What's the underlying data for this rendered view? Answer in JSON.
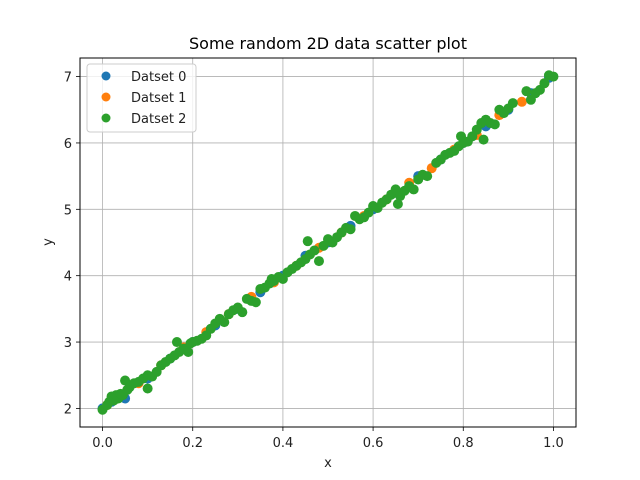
{
  "chart_data": {
    "type": "scatter",
    "title": "Some random 2D data scatter plot",
    "xlabel": "x",
    "ylabel": "y",
    "xlim": [
      -0.05,
      1.05
    ],
    "ylim": [
      1.72,
      7.28
    ],
    "xticks": [
      0.0,
      0.2,
      0.4,
      0.6,
      0.8,
      1.0
    ],
    "xtick_labels": [
      "0.0",
      "0.2",
      "0.4",
      "0.6",
      "0.8",
      "1.0"
    ],
    "yticks": [
      2,
      3,
      4,
      5,
      6,
      7
    ],
    "ytick_labels": [
      "2",
      "3",
      "4",
      "5",
      "6",
      "7"
    ],
    "grid": true,
    "legend_position": "top-left",
    "series": [
      {
        "name": "Datset 0",
        "color": "#1f77b4",
        "points": [
          [
            0.0,
            2.0
          ],
          [
            0.02,
            2.1
          ],
          [
            0.05,
            2.15
          ],
          [
            0.1,
            2.45
          ],
          [
            0.15,
            2.75
          ],
          [
            0.2,
            3.0
          ],
          [
            0.25,
            3.25
          ],
          [
            0.3,
            3.5
          ],
          [
            0.35,
            3.75
          ],
          [
            0.4,
            4.0
          ],
          [
            0.45,
            4.3
          ],
          [
            0.5,
            4.5
          ],
          [
            0.55,
            4.75
          ],
          [
            0.6,
            5.0
          ],
          [
            0.65,
            5.25
          ],
          [
            0.7,
            5.5
          ],
          [
            0.75,
            5.75
          ],
          [
            0.8,
            6.0
          ],
          [
            0.85,
            6.25
          ],
          [
            0.9,
            6.5
          ],
          [
            0.95,
            6.75
          ],
          [
            0.99,
            6.98
          ]
        ]
      },
      {
        "name": "Datset 1",
        "color": "#ff7f0e",
        "points": [
          [
            0.01,
            2.05
          ],
          [
            0.04,
            2.2
          ],
          [
            0.08,
            2.38
          ],
          [
            0.13,
            2.65
          ],
          [
            0.18,
            2.92
          ],
          [
            0.23,
            3.15
          ],
          [
            0.28,
            3.42
          ],
          [
            0.33,
            3.68
          ],
          [
            0.38,
            3.9
          ],
          [
            0.43,
            4.15
          ],
          [
            0.48,
            4.42
          ],
          [
            0.53,
            4.65
          ],
          [
            0.58,
            4.9
          ],
          [
            0.63,
            5.15
          ],
          [
            0.68,
            5.4
          ],
          [
            0.73,
            5.62
          ],
          [
            0.78,
            5.9
          ],
          [
            0.83,
            6.12
          ],
          [
            0.88,
            6.42
          ],
          [
            0.93,
            6.62
          ],
          [
            0.98,
            6.9
          ]
        ]
      },
      {
        "name": "Datset 2",
        "color": "#2ca02c",
        "points": [
          [
            0.0,
            1.98
          ],
          [
            0.01,
            2.05
          ],
          [
            0.015,
            2.1
          ],
          [
            0.02,
            2.18
          ],
          [
            0.025,
            2.12
          ],
          [
            0.03,
            2.2
          ],
          [
            0.035,
            2.15
          ],
          [
            0.04,
            2.22
          ],
          [
            0.045,
            2.2
          ],
          [
            0.05,
            2.42
          ],
          [
            0.055,
            2.28
          ],
          [
            0.06,
            2.32
          ],
          [
            0.07,
            2.38
          ],
          [
            0.08,
            2.4
          ],
          [
            0.09,
            2.45
          ],
          [
            0.1,
            2.5
          ],
          [
            0.1,
            2.3
          ],
          [
            0.11,
            2.48
          ],
          [
            0.12,
            2.55
          ],
          [
            0.13,
            2.65
          ],
          [
            0.14,
            2.7
          ],
          [
            0.15,
            2.75
          ],
          [
            0.16,
            2.8
          ],
          [
            0.165,
            3.0
          ],
          [
            0.17,
            2.85
          ],
          [
            0.18,
            2.9
          ],
          [
            0.19,
            2.85
          ],
          [
            0.195,
            2.98
          ],
          [
            0.2,
            3.0
          ],
          [
            0.21,
            3.02
          ],
          [
            0.22,
            3.05
          ],
          [
            0.23,
            3.1
          ],
          [
            0.24,
            3.2
          ],
          [
            0.25,
            3.28
          ],
          [
            0.26,
            3.35
          ],
          [
            0.27,
            3.3
          ],
          [
            0.28,
            3.42
          ],
          [
            0.29,
            3.48
          ],
          [
            0.3,
            3.52
          ],
          [
            0.31,
            3.45
          ],
          [
            0.32,
            3.65
          ],
          [
            0.33,
            3.62
          ],
          [
            0.34,
            3.6
          ],
          [
            0.35,
            3.8
          ],
          [
            0.36,
            3.82
          ],
          [
            0.37,
            3.88
          ],
          [
            0.375,
            3.95
          ],
          [
            0.38,
            3.92
          ],
          [
            0.39,
            3.98
          ],
          [
            0.4,
            3.95
          ],
          [
            0.41,
            4.05
          ],
          [
            0.42,
            4.1
          ],
          [
            0.43,
            4.15
          ],
          [
            0.44,
            4.2
          ],
          [
            0.45,
            4.25
          ],
          [
            0.455,
            4.52
          ],
          [
            0.46,
            4.32
          ],
          [
            0.47,
            4.38
          ],
          [
            0.48,
            4.22
          ],
          [
            0.49,
            4.45
          ],
          [
            0.5,
            4.55
          ],
          [
            0.51,
            4.5
          ],
          [
            0.52,
            4.58
          ],
          [
            0.53,
            4.65
          ],
          [
            0.54,
            4.72
          ],
          [
            0.55,
            4.7
          ],
          [
            0.56,
            4.9
          ],
          [
            0.57,
            4.85
          ],
          [
            0.58,
            4.88
          ],
          [
            0.59,
            4.95
          ],
          [
            0.6,
            5.05
          ],
          [
            0.61,
            5.02
          ],
          [
            0.62,
            5.1
          ],
          [
            0.63,
            5.15
          ],
          [
            0.64,
            5.22
          ],
          [
            0.65,
            5.3
          ],
          [
            0.655,
            5.08
          ],
          [
            0.66,
            5.2
          ],
          [
            0.67,
            5.28
          ],
          [
            0.68,
            5.35
          ],
          [
            0.69,
            5.3
          ],
          [
            0.7,
            5.45
          ],
          [
            0.71,
            5.52
          ],
          [
            0.72,
            5.5
          ],
          [
            0.74,
            5.7
          ],
          [
            0.75,
            5.75
          ],
          [
            0.76,
            5.82
          ],
          [
            0.77,
            5.85
          ],
          [
            0.78,
            5.88
          ],
          [
            0.79,
            5.95
          ],
          [
            0.795,
            6.1
          ],
          [
            0.8,
            6.0
          ],
          [
            0.81,
            6.02
          ],
          [
            0.82,
            6.1
          ],
          [
            0.83,
            6.2
          ],
          [
            0.84,
            6.3
          ],
          [
            0.845,
            6.05
          ],
          [
            0.85,
            6.35
          ],
          [
            0.86,
            6.3
          ],
          [
            0.87,
            6.28
          ],
          [
            0.88,
            6.5
          ],
          [
            0.89,
            6.45
          ],
          [
            0.9,
            6.52
          ],
          [
            0.91,
            6.6
          ],
          [
            0.94,
            6.78
          ],
          [
            0.95,
            6.65
          ],
          [
            0.96,
            6.75
          ],
          [
            0.97,
            6.8
          ],
          [
            0.98,
            6.9
          ],
          [
            0.99,
            7.02
          ],
          [
            1.0,
            7.0
          ]
        ]
      }
    ]
  }
}
